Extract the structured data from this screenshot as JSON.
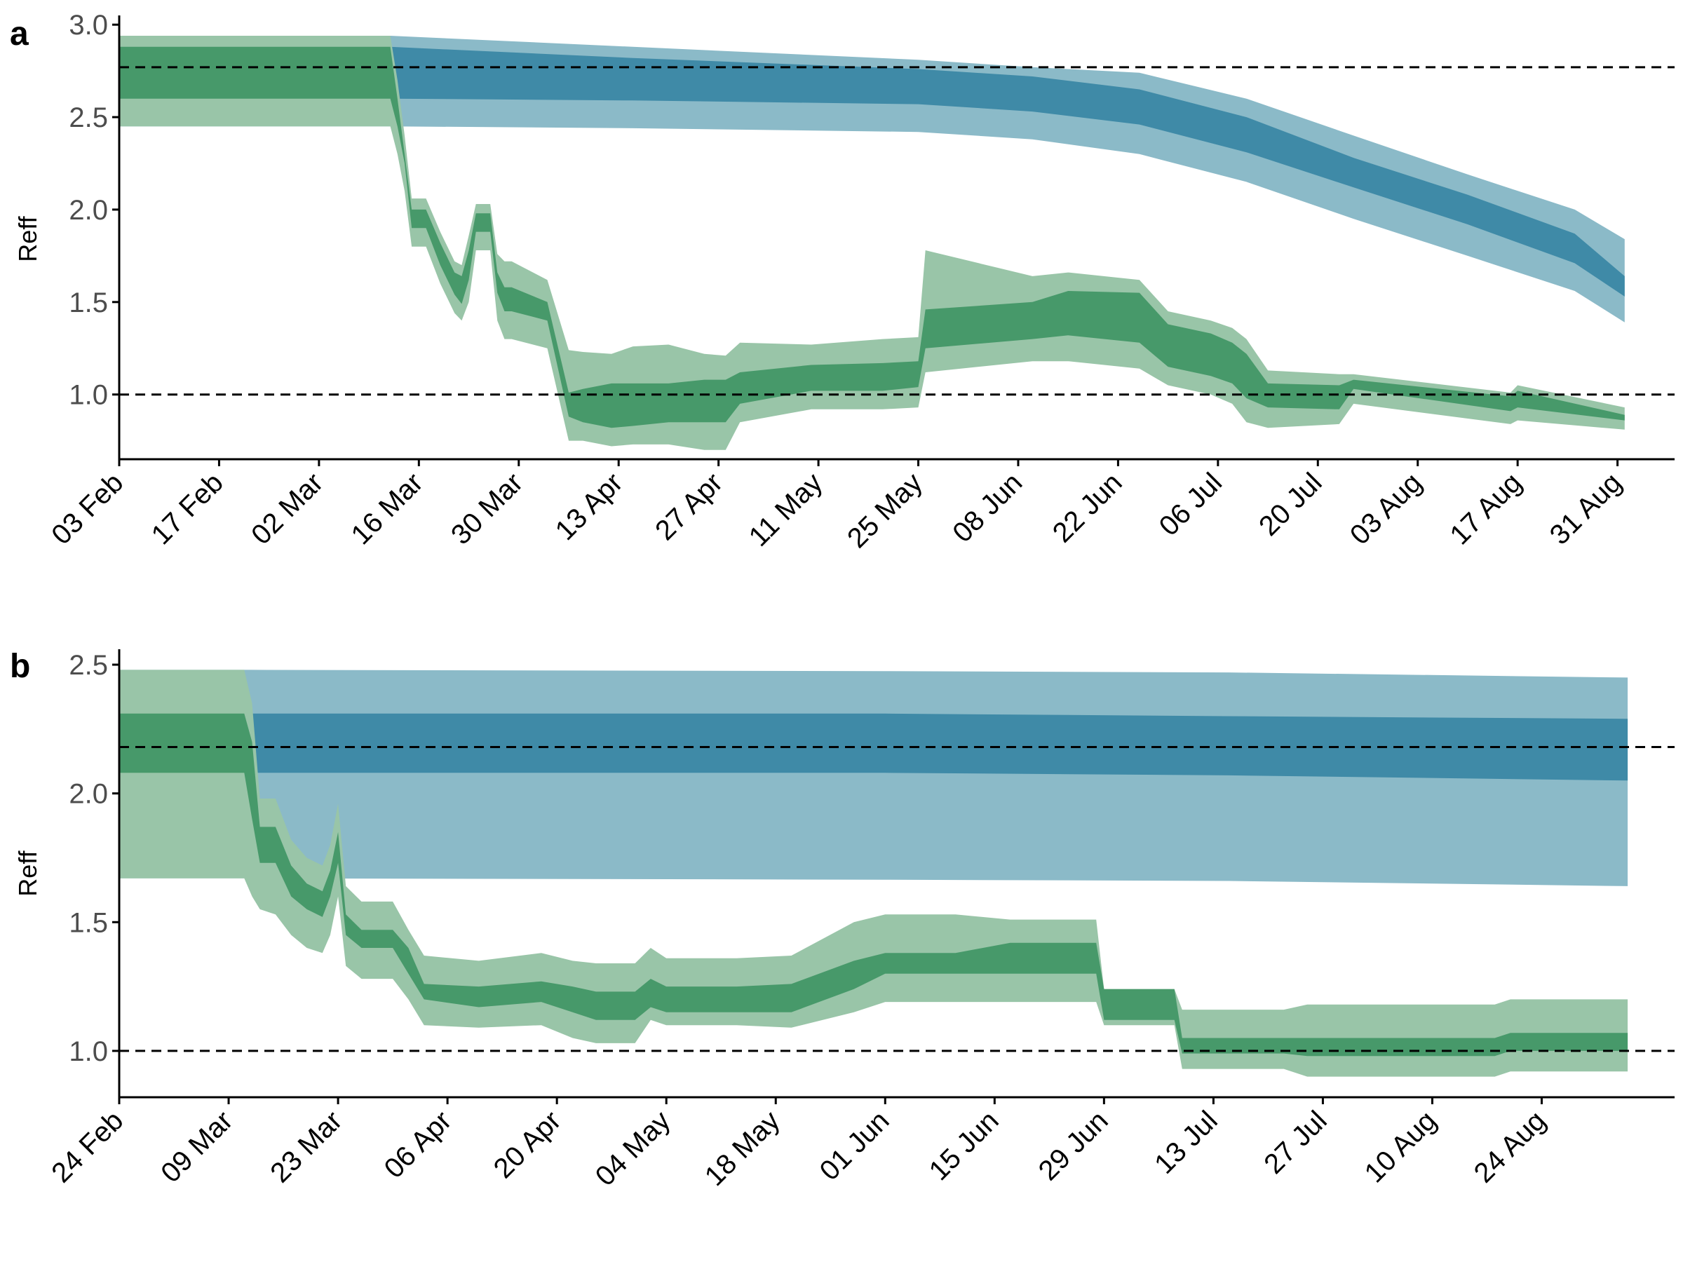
{
  "colors": {
    "blue_outer": "#8bbac8",
    "blue_inner": "#3f8aa7",
    "green_outer": "#99c5a8",
    "green_inner": "#47996a",
    "axis": "#000000",
    "reference_line": "#000000"
  },
  "chart_data": [
    {
      "panel_label": "a",
      "type": "area",
      "ylabel": "Reff",
      "ylim": [
        0.65,
        3.05
      ],
      "yticks": [
        1.0,
        1.5,
        2.0,
        2.5,
        3.0
      ],
      "ytick_labels": [
        "1.0",
        "1.5",
        "2.0",
        "2.5",
        "3.0"
      ],
      "xlim": [
        "2020-02-03",
        "2020-09-08"
      ],
      "xticks": [
        "2020-02-03",
        "2020-02-17",
        "2020-03-02",
        "2020-03-16",
        "2020-03-30",
        "2020-04-13",
        "2020-04-27",
        "2020-05-11",
        "2020-05-25",
        "2020-06-08",
        "2020-06-22",
        "2020-07-06",
        "2020-07-20",
        "2020-08-03",
        "2020-08-17",
        "2020-08-31"
      ],
      "xtick_labels": [
        "03 Feb",
        "17 Feb",
        "02 Mar",
        "16 Mar",
        "30 Mar",
        "13 Apr",
        "27 Apr",
        "11 May",
        "25 May",
        "08 Jun",
        "22 Jun",
        "06 Jul",
        "20 Jul",
        "03 Aug",
        "17 Aug",
        "31 Aug"
      ],
      "hlines": [
        2.77,
        1.0
      ],
      "series": [
        {
          "color": "blue",
          "x": [
            "2020-02-03",
            "2020-03-12",
            "2020-04-15",
            "2020-05-25",
            "2020-06-10",
            "2020-06-25",
            "2020-07-10",
            "2020-07-25",
            "2020-08-10",
            "2020-08-25",
            "2020-09-01"
          ],
          "lower_outer": [
            2.45,
            2.45,
            2.44,
            2.42,
            2.38,
            2.3,
            2.15,
            1.95,
            1.75,
            1.56,
            1.39
          ],
          "lower_inner": [
            2.6,
            2.6,
            2.59,
            2.57,
            2.53,
            2.46,
            2.31,
            2.12,
            1.92,
            1.71,
            1.53
          ],
          "upper_inner": [
            2.88,
            2.88,
            2.82,
            2.76,
            2.72,
            2.65,
            2.5,
            2.28,
            2.08,
            1.87,
            1.64
          ],
          "upper_outer": [
            2.94,
            2.94,
            2.88,
            2.81,
            2.77,
            2.74,
            2.6,
            2.4,
            2.19,
            2.0,
            1.84
          ]
        },
        {
          "color": "green",
          "x": [
            "2020-02-03",
            "2020-03-12",
            "2020-03-13",
            "2020-03-14",
            "2020-03-15",
            "2020-03-17",
            "2020-03-19",
            "2020-03-21",
            "2020-03-22",
            "2020-03-23",
            "2020-03-24",
            "2020-03-26",
            "2020-03-27",
            "2020-03-28",
            "2020-03-29",
            "2020-04-03",
            "2020-04-06",
            "2020-04-08",
            "2020-04-12",
            "2020-04-15",
            "2020-04-20",
            "2020-04-25",
            "2020-04-28",
            "2020-04-30",
            "2020-05-10",
            "2020-05-20",
            "2020-05-25",
            "2020-05-26",
            "2020-06-10",
            "2020-06-15",
            "2020-06-25",
            "2020-06-29",
            "2020-07-05",
            "2020-07-08",
            "2020-07-10",
            "2020-07-13",
            "2020-07-23",
            "2020-07-25",
            "2020-08-16",
            "2020-08-17",
            "2020-09-01"
          ],
          "lower_outer": [
            2.45,
            2.45,
            2.3,
            2.1,
            1.8,
            1.8,
            1.6,
            1.44,
            1.4,
            1.5,
            1.78,
            1.78,
            1.4,
            1.3,
            1.3,
            1.25,
            0.75,
            0.75,
            0.72,
            0.73,
            0.73,
            0.7,
            0.7,
            0.85,
            0.92,
            0.92,
            0.93,
            1.12,
            1.18,
            1.18,
            1.14,
            1.05,
            1.0,
            0.95,
            0.85,
            0.82,
            0.84,
            0.95,
            0.84,
            0.86,
            0.81
          ],
          "lower_inner": [
            2.6,
            2.6,
            2.45,
            2.25,
            1.9,
            1.9,
            1.7,
            1.54,
            1.49,
            1.62,
            1.88,
            1.88,
            1.55,
            1.45,
            1.45,
            1.4,
            0.88,
            0.85,
            0.82,
            0.83,
            0.85,
            0.85,
            0.85,
            0.95,
            1.02,
            1.02,
            1.04,
            1.25,
            1.3,
            1.32,
            1.28,
            1.15,
            1.1,
            1.06,
            0.98,
            0.93,
            0.92,
            1.03,
            0.91,
            0.93,
            0.86
          ],
          "upper_inner": [
            2.88,
            2.88,
            2.6,
            2.3,
            2.0,
            2.0,
            1.82,
            1.66,
            1.64,
            1.78,
            1.98,
            1.98,
            1.66,
            1.58,
            1.58,
            1.5,
            1.01,
            1.03,
            1.06,
            1.06,
            1.06,
            1.08,
            1.08,
            1.12,
            1.16,
            1.17,
            1.18,
            1.46,
            1.5,
            1.56,
            1.55,
            1.38,
            1.33,
            1.28,
            1.22,
            1.06,
            1.05,
            1.08,
            0.99,
            1.02,
            0.89
          ],
          "upper_outer": [
            2.94,
            2.94,
            2.7,
            2.4,
            2.06,
            2.06,
            1.88,
            1.72,
            1.7,
            1.86,
            2.03,
            2.03,
            1.76,
            1.72,
            1.72,
            1.62,
            1.24,
            1.23,
            1.22,
            1.26,
            1.27,
            1.22,
            1.21,
            1.28,
            1.27,
            1.3,
            1.31,
            1.78,
            1.64,
            1.66,
            1.62,
            1.45,
            1.4,
            1.36,
            1.3,
            1.13,
            1.11,
            1.11,
            1.01,
            1.05,
            0.93
          ]
        }
      ]
    },
    {
      "panel_label": "b",
      "type": "area",
      "ylabel": "Reff",
      "ylim": [
        0.82,
        2.56
      ],
      "yticks": [
        1.0,
        1.5,
        2.0,
        2.5
      ],
      "ytick_labels": [
        "1.0",
        "1.5",
        "2.0",
        "2.5"
      ],
      "xlim": [
        "2020-02-24",
        "2020-09-10"
      ],
      "xticks": [
        "2020-02-24",
        "2020-03-09",
        "2020-03-23",
        "2020-04-06",
        "2020-04-20",
        "2020-05-04",
        "2020-05-18",
        "2020-06-01",
        "2020-06-15",
        "2020-06-29",
        "2020-07-13",
        "2020-07-27",
        "2020-08-10",
        "2020-08-24"
      ],
      "xtick_labels": [
        "24 Feb",
        "09 Mar",
        "23 Mar",
        "06 Apr",
        "20 Apr",
        "04 May",
        "18 May",
        "01 Jun",
        "15 Jun",
        "29 Jun",
        "13 Jul",
        "27 Jul",
        "10 Aug",
        "24 Aug"
      ],
      "hlines": [
        2.18,
        1.0
      ],
      "series": [
        {
          "color": "blue",
          "x": [
            "2020-02-24",
            "2020-03-12",
            "2020-06-01",
            "2020-07-15",
            "2020-09-04"
          ],
          "lower_outer": [
            1.67,
            1.67,
            1.665,
            1.66,
            1.64
          ],
          "lower_inner": [
            2.08,
            2.08,
            2.08,
            2.07,
            2.05
          ],
          "upper_inner": [
            2.31,
            2.31,
            2.31,
            2.3,
            2.29
          ],
          "upper_outer": [
            2.48,
            2.48,
            2.475,
            2.47,
            2.45
          ]
        },
        {
          "color": "green",
          "x": [
            "2020-02-24",
            "2020-03-11",
            "2020-03-12",
            "2020-03-13",
            "2020-03-15",
            "2020-03-17",
            "2020-03-19",
            "2020-03-21",
            "2020-03-22",
            "2020-03-23",
            "2020-03-24",
            "2020-03-26",
            "2020-03-30",
            "2020-04-01",
            "2020-04-03",
            "2020-04-10",
            "2020-04-18",
            "2020-04-22",
            "2020-04-25",
            "2020-04-30",
            "2020-05-02",
            "2020-05-04",
            "2020-05-13",
            "2020-05-20",
            "2020-05-28",
            "2020-06-01",
            "2020-06-10",
            "2020-06-17",
            "2020-06-28",
            "2020-06-29",
            "2020-07-08",
            "2020-07-09",
            "2020-07-22",
            "2020-07-25",
            "2020-08-18",
            "2020-08-20",
            "2020-09-04"
          ],
          "lower_outer": [
            1.67,
            1.67,
            1.6,
            1.55,
            1.53,
            1.45,
            1.4,
            1.38,
            1.45,
            1.6,
            1.33,
            1.28,
            1.28,
            1.2,
            1.1,
            1.09,
            1.1,
            1.05,
            1.03,
            1.03,
            1.12,
            1.1,
            1.1,
            1.09,
            1.15,
            1.19,
            1.19,
            1.19,
            1.19,
            1.1,
            1.1,
            0.93,
            0.93,
            0.9,
            0.9,
            0.92,
            0.92
          ],
          "lower_inner": [
            2.08,
            2.08,
            1.9,
            1.73,
            1.73,
            1.6,
            1.55,
            1.52,
            1.6,
            1.73,
            1.45,
            1.4,
            1.4,
            1.3,
            1.2,
            1.17,
            1.19,
            1.15,
            1.12,
            1.12,
            1.17,
            1.15,
            1.15,
            1.15,
            1.24,
            1.3,
            1.3,
            1.3,
            1.3,
            1.12,
            1.12,
            0.99,
            0.99,
            0.98,
            0.98,
            1.0,
            1.0
          ],
          "upper_inner": [
            2.31,
            2.31,
            2.2,
            1.87,
            1.87,
            1.72,
            1.65,
            1.62,
            1.7,
            1.85,
            1.53,
            1.47,
            1.47,
            1.4,
            1.26,
            1.25,
            1.27,
            1.25,
            1.23,
            1.23,
            1.28,
            1.25,
            1.25,
            1.26,
            1.35,
            1.38,
            1.38,
            1.42,
            1.42,
            1.24,
            1.24,
            1.05,
            1.05,
            1.05,
            1.05,
            1.07,
            1.07
          ],
          "upper_outer": [
            2.48,
            2.48,
            2.35,
            1.98,
            1.98,
            1.82,
            1.75,
            1.72,
            1.8,
            1.96,
            1.64,
            1.58,
            1.58,
            1.47,
            1.37,
            1.35,
            1.38,
            1.35,
            1.34,
            1.34,
            1.4,
            1.36,
            1.36,
            1.37,
            1.5,
            1.53,
            1.53,
            1.51,
            1.51,
            1.24,
            1.24,
            1.16,
            1.16,
            1.18,
            1.18,
            1.2,
            1.2
          ]
        }
      ]
    }
  ]
}
